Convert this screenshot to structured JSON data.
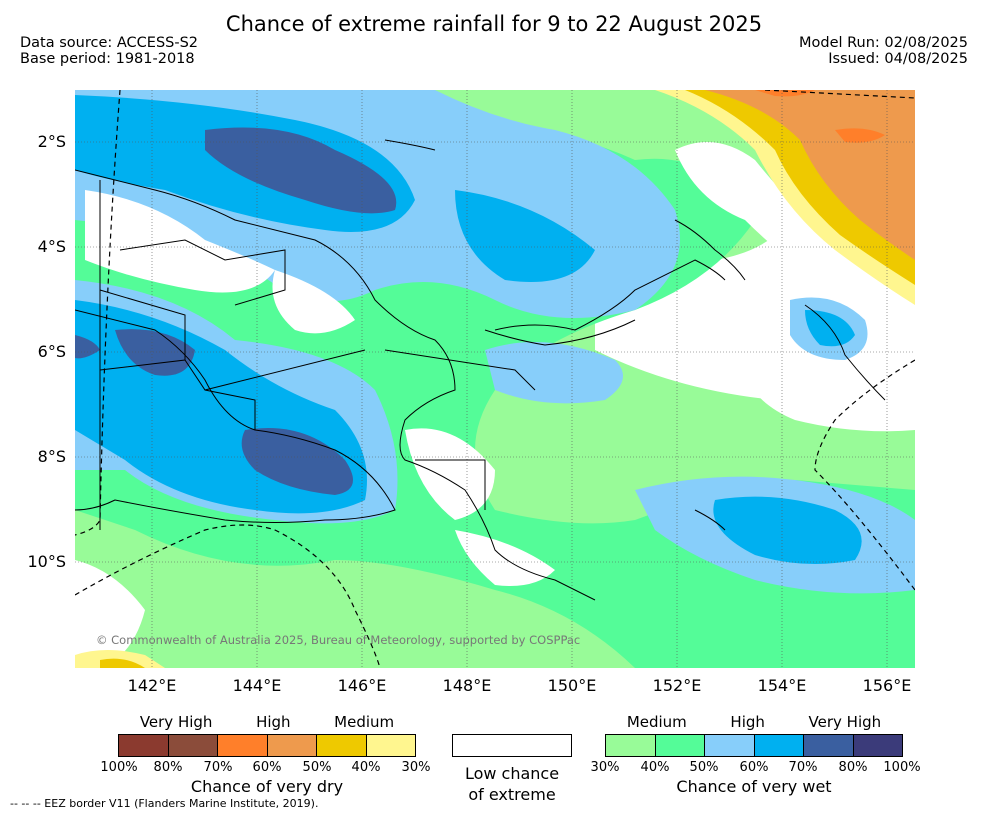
{
  "title": "Chance of extreme rainfall for 9 to 22 August 2025",
  "data_source": "Data source: ACCESS-S2",
  "base_period": "Base period: 1981-2018",
  "model_run": "Model Run: 02/08/2025",
  "issued": "Issued: 04/08/2025",
  "copyright": "© Commonwealth of Australia 2025, Bureau of Meteorology, supported by COSPPac",
  "footer": "-- -- -- EEZ border V11 (Flanders Marine Institute, 2019).",
  "lat_labels": [
    "2°S",
    "4°S",
    "6°S",
    "8°S",
    "10°S"
  ],
  "lon_labels": [
    "142°E",
    "144°E",
    "146°E",
    "148°E",
    "150°E",
    "152°E",
    "154°E",
    "156°E"
  ],
  "legend": {
    "dry": {
      "levels": [
        "Very High",
        "High",
        "Medium"
      ],
      "ticks": [
        "100%",
        "80%",
        "70%",
        "60%",
        "50%",
        "40%",
        "30%"
      ],
      "label": "Chance of very dry",
      "colors": [
        "#8b3a2f",
        "#8b4c3a",
        "#ff7f2a",
        "#ee9a4d",
        "#eec900",
        "#fff68f"
      ]
    },
    "low": {
      "label_line1": "Low chance",
      "label_line2": "of extreme",
      "color": "#ffffff"
    },
    "wet": {
      "levels": [
        "Medium",
        "High",
        "Very High"
      ],
      "ticks": [
        "30%",
        "40%",
        "50%",
        "60%",
        "70%",
        "80%",
        "100%"
      ],
      "label": "Chance of very wet",
      "colors": [
        "#98fb98",
        "#54fc98",
        "#87cefa",
        "#00b0f0",
        "#3a5fa0",
        "#3b3b7a"
      ]
    }
  },
  "colors": {
    "light_green": "#98fb98",
    "green": "#54fc98",
    "light_blue": "#87cefa",
    "blue": "#00b0f0",
    "dark_blue": "#3a5fa0",
    "navy": "#3b3b7a",
    "yellow": "#eec900",
    "orange": "#ee9a4d",
    "dark_orange": "#ff7f2a",
    "pale_yellow": "#fff68f"
  }
}
